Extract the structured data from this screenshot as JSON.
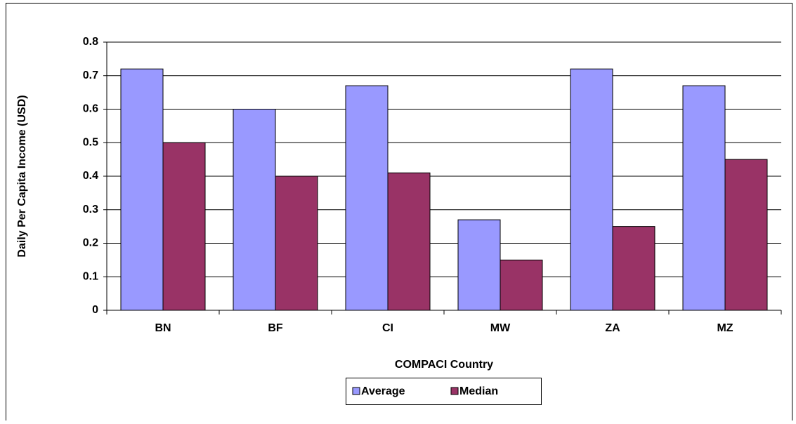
{
  "chart_data": {
    "type": "bar",
    "x_label": "COMPACI Country",
    "y_label": "Daily Per Capita Income (USD)",
    "categories": [
      "BN",
      "BF",
      "CI",
      "MW",
      "ZA",
      "MZ"
    ],
    "series": [
      {
        "name": "Average",
        "color": "#9999ff",
        "values": [
          0.72,
          0.6,
          0.67,
          0.27,
          0.72,
          0.67
        ]
      },
      {
        "name": "Median",
        "color": "#993366",
        "values": [
          0.5,
          0.4,
          0.41,
          0.15,
          0.25,
          0.45
        ]
      }
    ],
    "ylim": [
      0,
      0.8
    ],
    "yticks": [
      0,
      0.1,
      0.2,
      0.3,
      0.4,
      0.5,
      0.6,
      0.7,
      0.8
    ],
    "grid": true,
    "legend": "bottom"
  }
}
